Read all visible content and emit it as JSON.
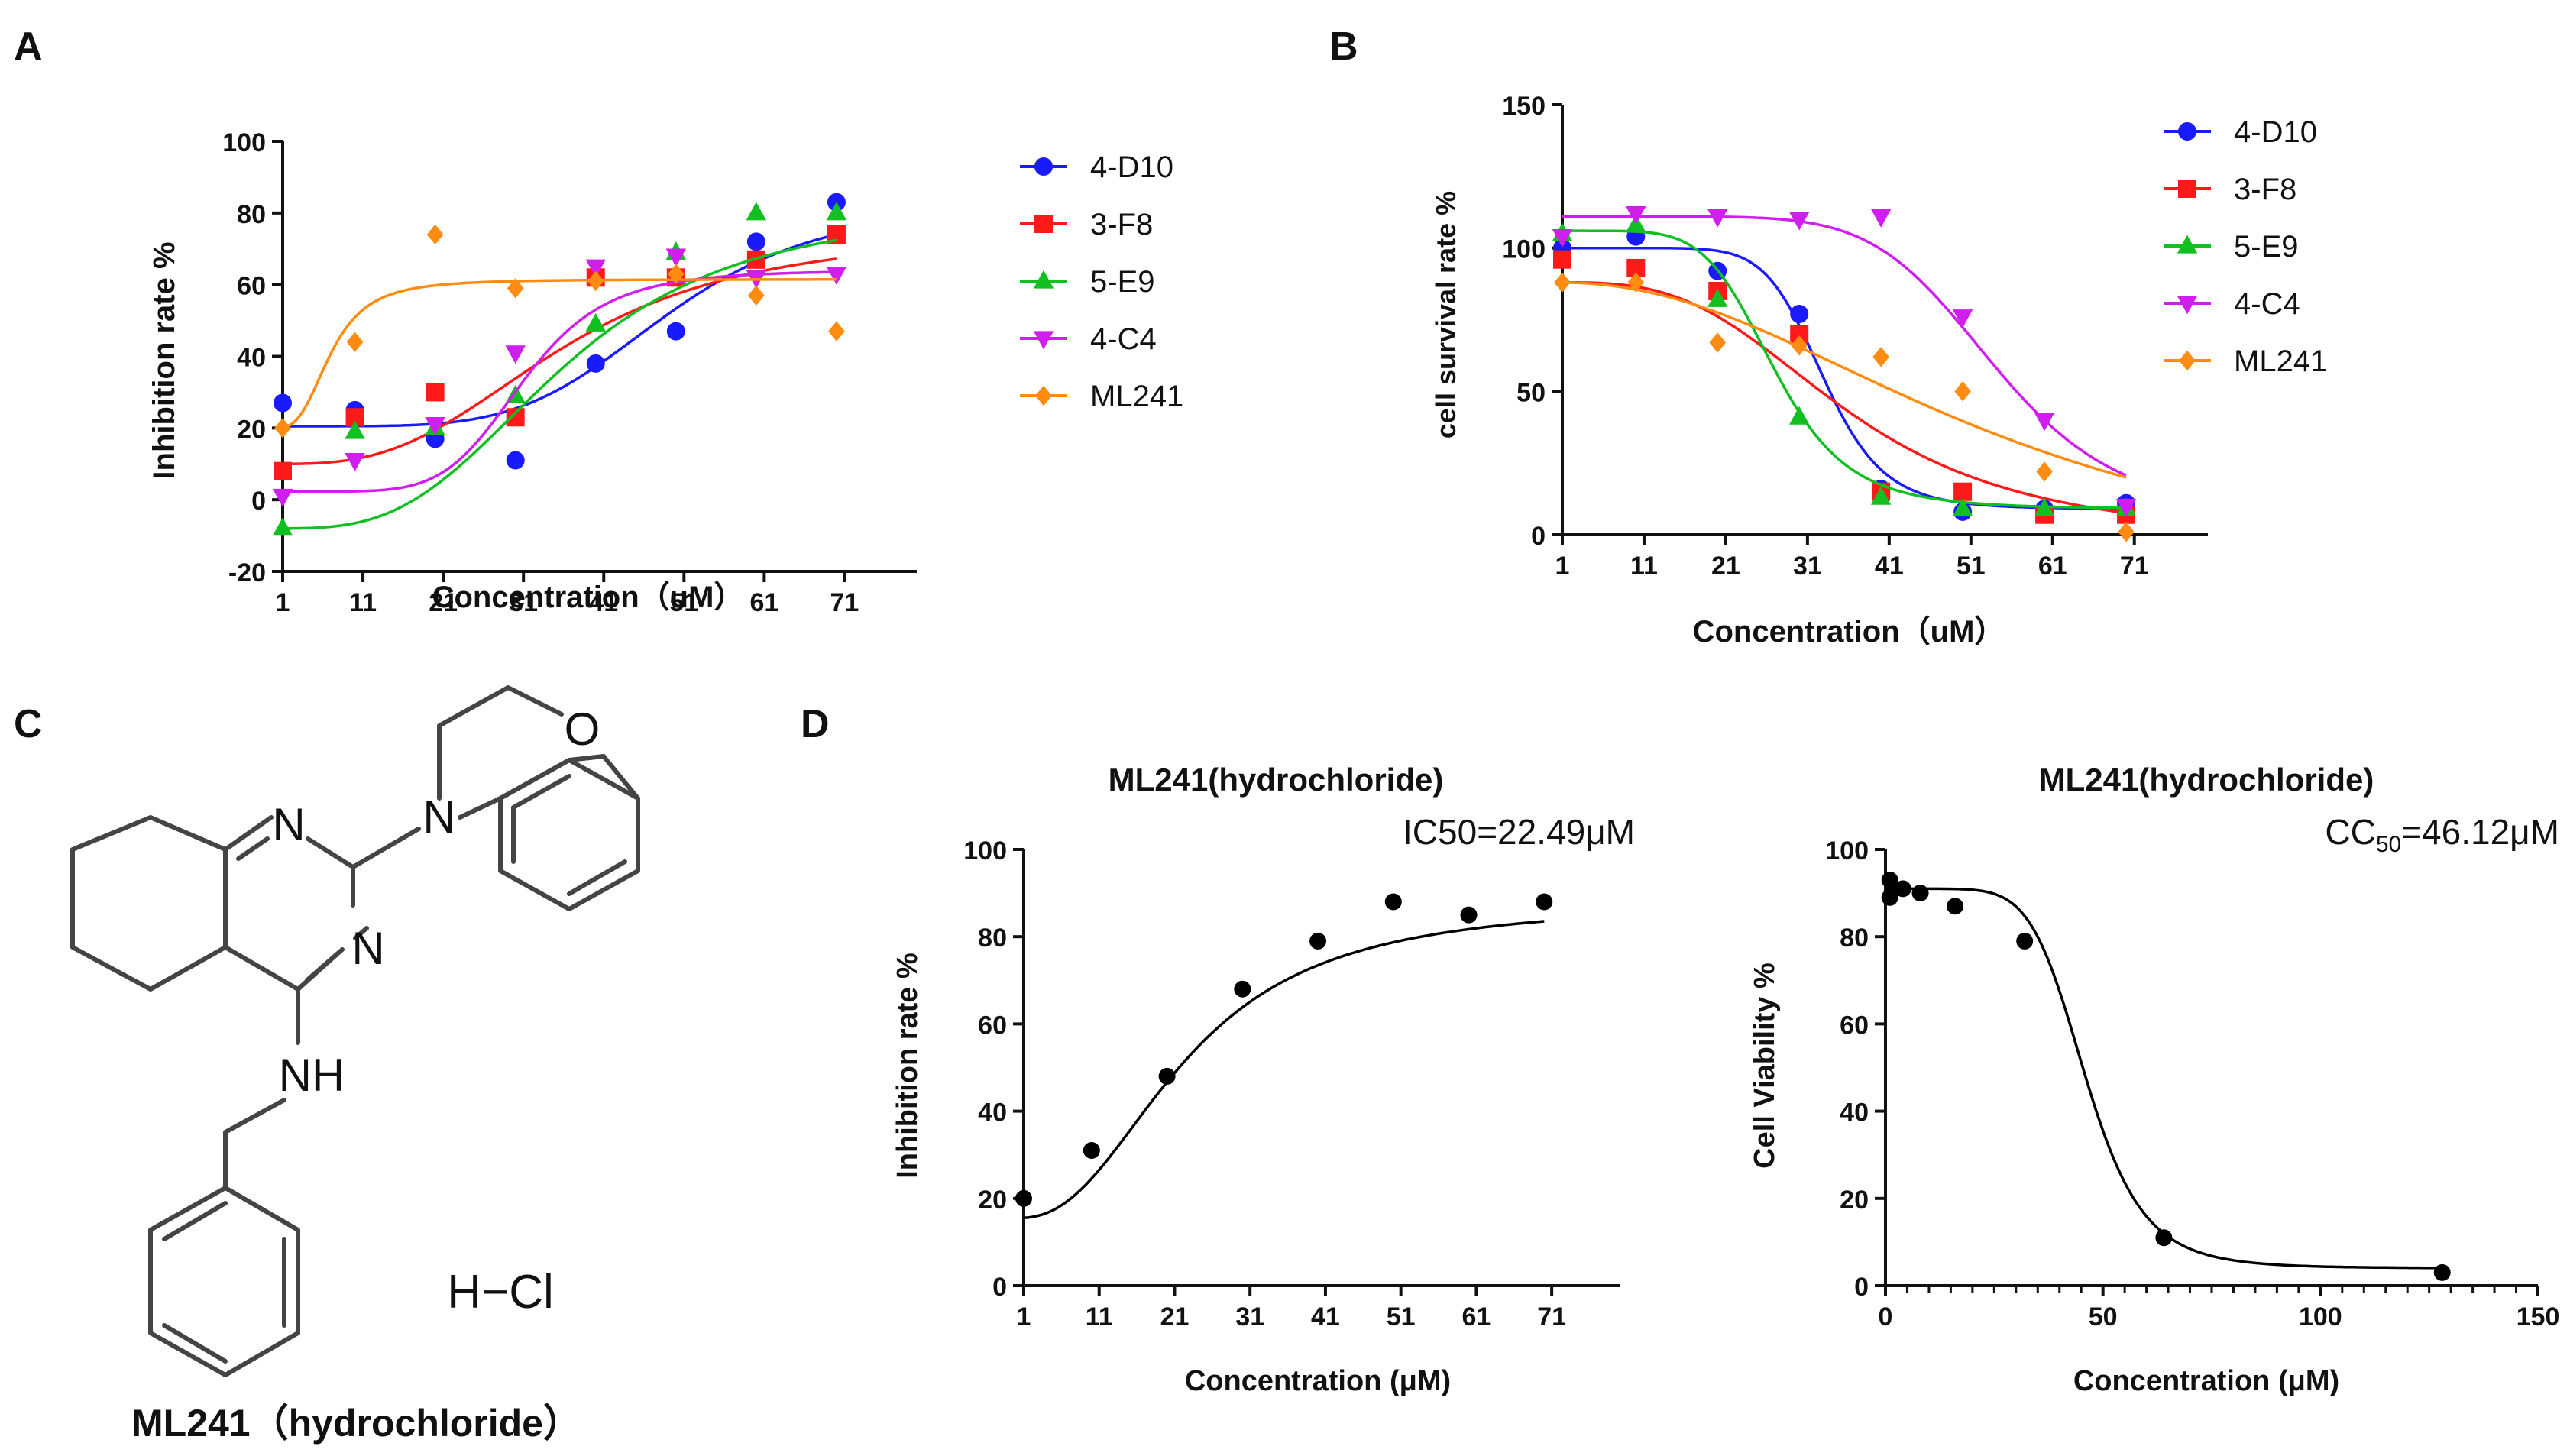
{
  "panels": {
    "A": "A",
    "B": "B",
    "C": "C",
    "D": "D"
  },
  "colors": {
    "4-D10": "#1a1aff",
    "3-F8": "#ff1a1a",
    "5-E9": "#10c020",
    "4-C4": "#d01ef0",
    "ML241": "#ff8c10",
    "black": "#000000"
  },
  "chart_data": [
    {
      "id": "A",
      "type": "scatter",
      "title": "",
      "xlabel": "Concentration（uM）",
      "ylabel": "Inhibition rate %",
      "xlim": [
        1,
        80
      ],
      "ylim": [
        -20,
        100
      ],
      "xticks": [
        1,
        11,
        21,
        31,
        41,
        51,
        61,
        71
      ],
      "yticks": [
        -20,
        0,
        20,
        40,
        60,
        80,
        100
      ],
      "x": [
        1,
        10,
        20,
        30,
        40,
        50,
        60,
        70
      ],
      "legend": "right",
      "series": [
        {
          "name": "4-D10",
          "marker": "circle",
          "values": [
            27,
            25,
            17,
            11,
            38,
            47,
            72,
            83
          ],
          "fit": {
            "bottom": 20.5,
            "top": 83,
            "ec50": 49,
            "hill": 5
          }
        },
        {
          "name": "3-F8",
          "marker": "square",
          "values": [
            8,
            23,
            30,
            23,
            62,
            62,
            67,
            74
          ],
          "fit": {
            "bottom": 10,
            "top": 75,
            "ec50": 36,
            "hill": 3
          }
        },
        {
          "name": "5-E9",
          "marker": "triangle-up",
          "values": [
            -8,
            19,
            20,
            29,
            49,
            69,
            80,
            80
          ],
          "fit": {
            "bottom": -8,
            "top": 82,
            "ec50": 36,
            "hill": 3.2
          }
        },
        {
          "name": "4-C4",
          "marker": "triangle-down",
          "values": [
            1,
            11,
            21,
            41,
            65,
            68,
            62,
            63
          ],
          "fit": {
            "bottom": 2.3,
            "top": 64,
            "ec50": 31,
            "hill": 6
          }
        },
        {
          "name": "ML241",
          "marker": "diamond",
          "values": [
            20,
            44,
            74,
            59,
            61,
            63,
            57,
            47
          ],
          "fit": {
            "bottom": 20,
            "top": 61.5,
            "ec50": 7,
            "hill": 3
          }
        }
      ]
    },
    {
      "id": "B",
      "type": "scatter",
      "title": "",
      "xlabel": "Concentration（uM）",
      "ylabel": "cell survival rate %",
      "xlim": [
        1,
        80
      ],
      "ylim": [
        0,
        150
      ],
      "xticks": [
        1,
        11,
        21,
        31,
        41,
        51,
        61,
        71
      ],
      "yticks": [
        0,
        50,
        100,
        150
      ],
      "x": [
        1,
        10,
        20,
        30,
        40,
        50,
        60,
        70
      ],
      "legend": "right",
      "series": [
        {
          "name": "4-D10",
          "marker": "circle",
          "values": [
            100,
            104,
            92,
            77,
            16,
            8,
            9,
            11
          ],
          "fit": {
            "bottom": 9,
            "top": 100,
            "ec50": 33,
            "hill": 9
          }
        },
        {
          "name": "3-F8",
          "marker": "square",
          "values": [
            96,
            93,
            85,
            70,
            15,
            15,
            7,
            7
          ],
          "fit": {
            "bottom": -2,
            "top": 88,
            "ec50": 36,
            "hill": 3.2
          }
        },
        {
          "name": "5-E9",
          "marker": "triangle-up",
          "values": [
            105,
            108,
            82,
            41,
            13,
            9,
            9,
            9
          ],
          "fit": {
            "bottom": 9,
            "top": 106,
            "ec50": 27,
            "hill": 6
          }
        },
        {
          "name": "4-C4",
          "marker": "triangle-down",
          "values": [
            104,
            112,
            111,
            110,
            111,
            76,
            40,
            10
          ],
          "fit": {
            "bottom": 6,
            "top": 111,
            "ec50": 54,
            "hill": 7
          }
        },
        {
          "name": "ML241",
          "marker": "diamond",
          "values": [
            88,
            88,
            67,
            66,
            62,
            50,
            22,
            1
          ],
          "fit": {
            "bottom": -20,
            "top": 88,
            "ec50": 55,
            "hill": 2.2
          }
        }
      ]
    },
    {
      "id": "D1",
      "type": "scatter",
      "title": "ML241(hydrochloride)",
      "annotation": "IC50=22.49μM",
      "xlabel": "Concentration (μM)",
      "ylabel": "Inhibition rate %",
      "xlim": [
        1,
        80
      ],
      "ylim": [
        0,
        100
      ],
      "xticks": [
        1,
        11,
        21,
        31,
        41,
        51,
        61,
        71
      ],
      "yticks": [
        0,
        20,
        40,
        60,
        80,
        100
      ],
      "series": [
        {
          "name": "ML241",
          "marker": "circle",
          "x": [
            1,
            10,
            20,
            30,
            40,
            50,
            60,
            70
          ],
          "values": [
            20,
            31,
            48,
            68,
            79,
            88,
            85,
            88
          ],
          "fit": {
            "bottom": 15.5,
            "top": 88,
            "ec50": 22.49,
            "hill": 2.4
          }
        }
      ]
    },
    {
      "id": "D2",
      "type": "scatter",
      "title": "ML241(hydrochloride)",
      "annotation": {
        "prefix": "CC",
        "sub": "50",
        "suffix": "=46.12μM"
      },
      "xlabel": "Concentration (μM)",
      "ylabel": "Cell Viability %",
      "xlim": [
        0,
        150
      ],
      "ylim": [
        0,
        100
      ],
      "xticks": [
        0,
        50,
        100,
        150
      ],
      "yticks": [
        0,
        20,
        40,
        60,
        80,
        100
      ],
      "series": [
        {
          "name": "ML241",
          "marker": "circle",
          "x": [
            1,
            1,
            2,
            4,
            8,
            16,
            32,
            64,
            128
          ],
          "values": [
            89,
            93,
            91,
            91,
            90,
            87,
            79,
            11,
            3
          ],
          "fit": {
            "bottom": 4,
            "top": 91,
            "ec50": 46.12,
            "hill": 7
          }
        }
      ]
    }
  ],
  "structure": {
    "atoms": {
      "N1": "N",
      "N2": "N",
      "N3": "N",
      "O": "O",
      "NH": "NH",
      "HCl": "H−Cl"
    },
    "caption": "ML241（hydrochloride）"
  }
}
